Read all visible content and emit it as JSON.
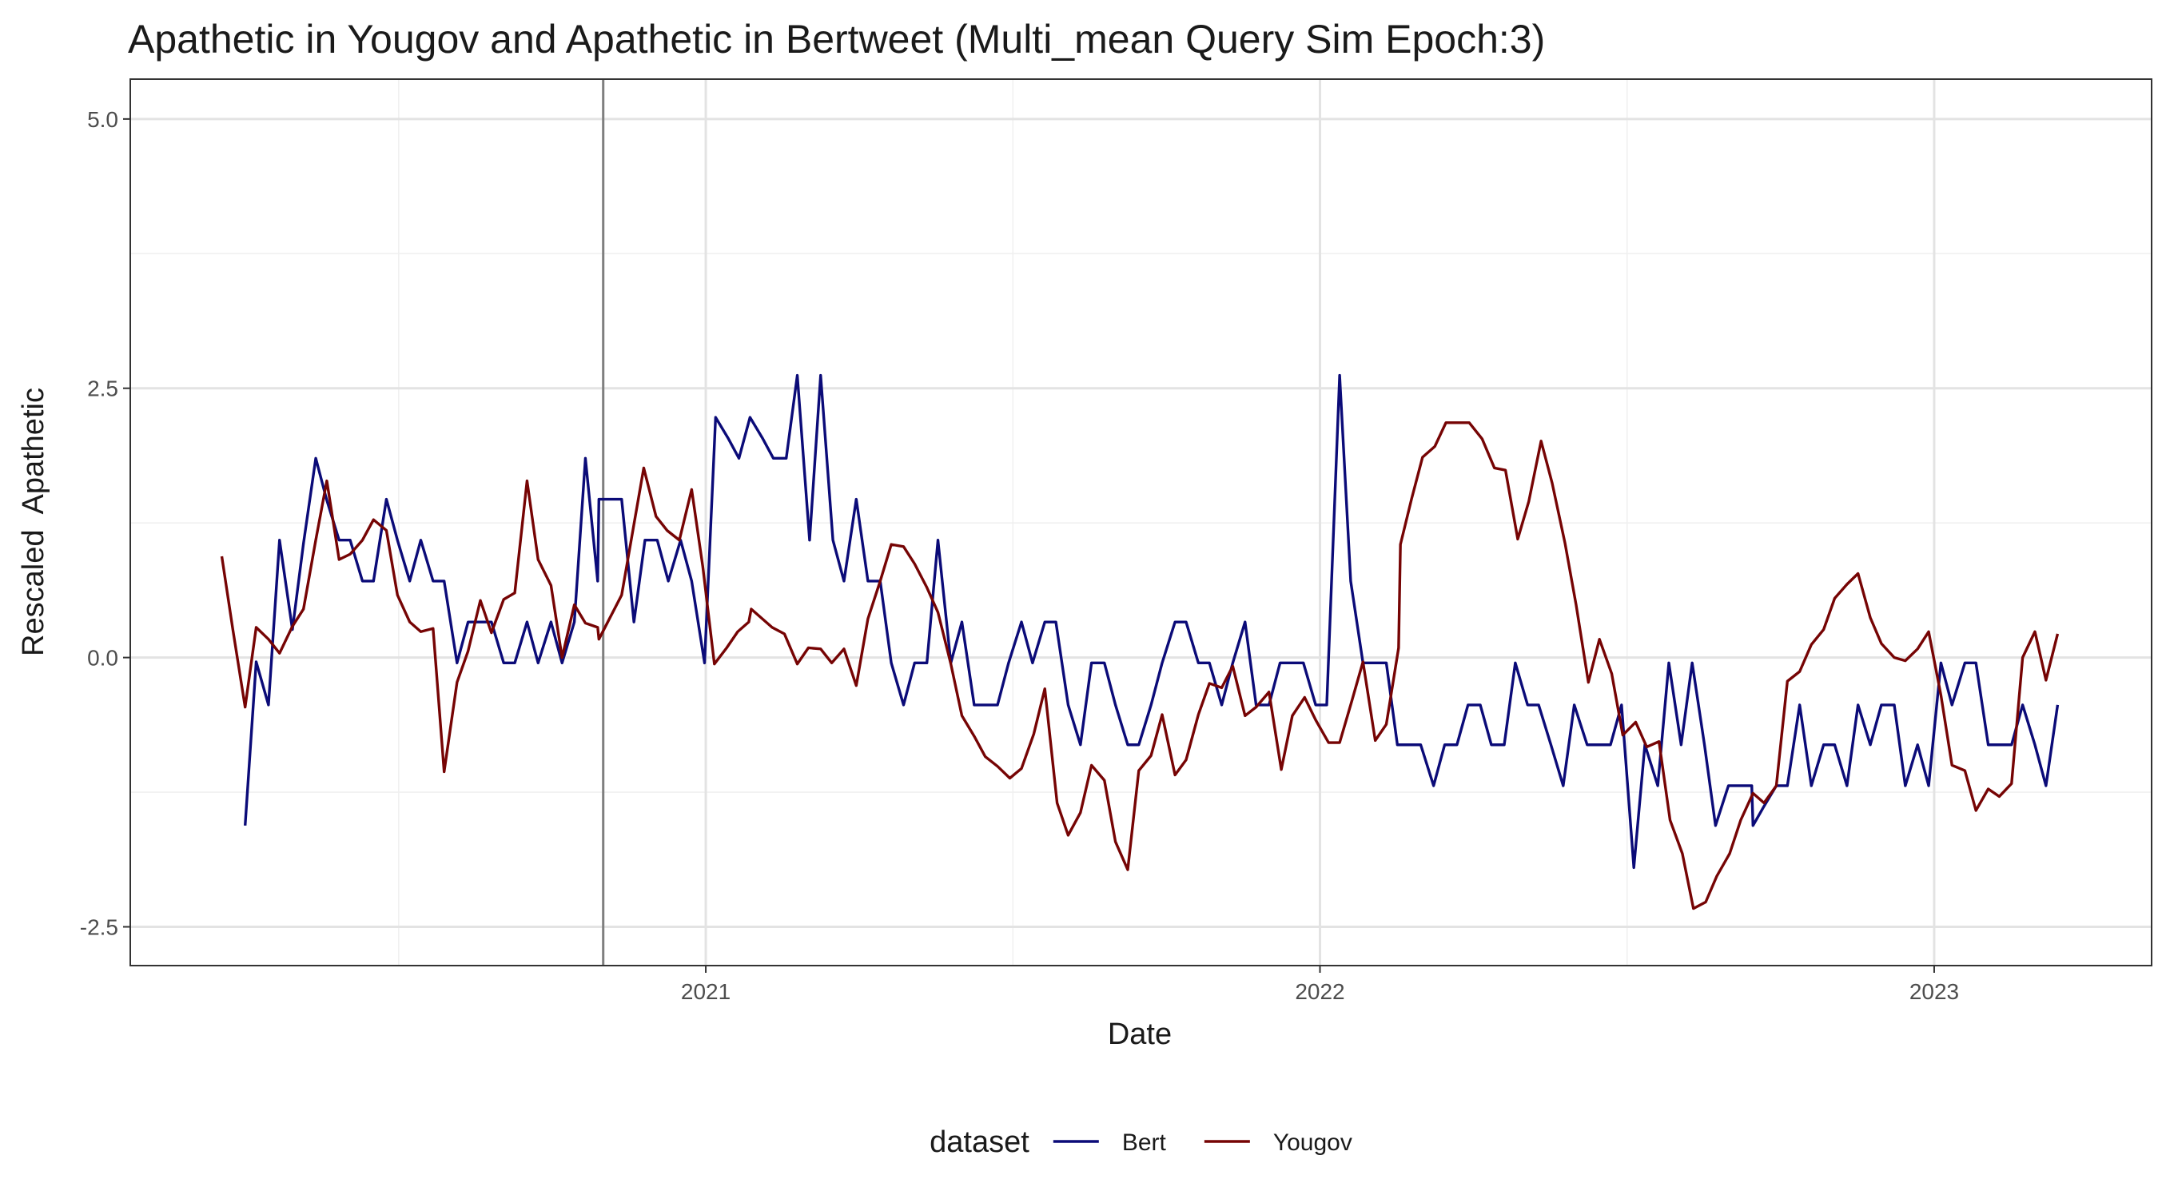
{
  "chart_data": {
    "type": "line",
    "title": "Apathetic in Yougov and Apathetic in Bertweet (Multi_mean Query Sim Epoch:3)",
    "x_label": "Date",
    "y_label": "Rescaled  Apathetic",
    "legend_title": "dataset",
    "legend": "bottom",
    "grid": true,
    "xlim": [
      2020.063,
      2023.354
    ],
    "xticks": [
      2021,
      2022,
      2023
    ],
    "minor_xticks": [
      2020.5,
      2021.5,
      2022.5
    ],
    "ylim": [
      -2.86,
      5.37
    ],
    "yticks": [
      {
        "value": 5,
        "label": "5.0"
      },
      2.5,
      {
        "value": 0,
        "label": "0.0"
      },
      -2.5
    ],
    "minor_yticks": [
      3.75,
      1.25,
      -1.25
    ],
    "vline": 2020.833,
    "vline_color": "#7f7f7f",
    "series": [
      {
        "name": "Bert",
        "color": "#0b0b78",
        "x": [
          2020.25,
          2020.268,
          2020.288,
          2020.306,
          2020.327,
          2020.345,
          2020.365,
          2020.383,
          2020.403,
          2020.421,
          2020.441,
          2020.459,
          2020.48,
          2020.498,
          2020.518,
          2020.536,
          2020.556,
          2020.574,
          2020.595,
          2020.613,
          2020.633,
          2020.651,
          2020.671,
          2020.689,
          2020.709,
          2020.727,
          2020.748,
          2020.766,
          2020.786,
          2020.804,
          2020.824,
          2020.826,
          2020.863,
          2020.883,
          2020.901,
          2020.921,
          2020.939,
          2020.959,
          2020.977,
          2020.998,
          2021.016,
          2021.036,
          2021.054,
          2021.072,
          2021.092,
          2021.11,
          2021.131,
          2021.149,
          2021.169,
          2021.187,
          2021.207,
          2021.225,
          2021.245,
          2021.264,
          2021.284,
          2021.302,
          2021.322,
          2021.34,
          2021.36,
          2021.378,
          2021.399,
          2021.417,
          2021.437,
          2021.455,
          2021.475,
          2021.493,
          2021.514,
          2021.532,
          2021.552,
          2021.57,
          2021.59,
          2021.61,
          2021.628,
          2021.649,
          2021.667,
          2021.687,
          2021.705,
          2021.725,
          2021.743,
          2021.764,
          2021.782,
          2021.802,
          2021.82,
          2021.84,
          2021.858,
          2021.878,
          2021.896,
          2021.917,
          2021.935,
          2021.955,
          2021.973,
          2021.993,
          2022.011,
          2022.032,
          2022.05,
          2022.07,
          2022.088,
          2022.108,
          2022.126,
          2022.146,
          2022.164,
          2022.185,
          2022.203,
          2022.223,
          2022.241,
          2022.261,
          2022.279,
          2022.3,
          2022.318,
          2022.338,
          2022.356,
          2022.376,
          2022.396,
          2022.414,
          2022.435,
          2022.453,
          2022.473,
          2022.491,
          2022.511,
          2022.529,
          2022.55,
          2022.568,
          2022.588,
          2022.606,
          2022.626,
          2022.644,
          2022.665,
          2022.683,
          2022.703,
          2022.705,
          2022.723,
          2022.743,
          2022.761,
          2022.781,
          2022.8,
          2022.82,
          2022.838,
          2022.858,
          2022.876,
          2022.896,
          2022.914,
          2022.935,
          2022.953,
          2022.973,
          2022.991,
          2023.011,
          2023.029,
          2023.05,
          2023.068,
          2023.088,
          2023.106,
          2023.126,
          2023.144,
          2023.164,
          2023.182,
          2023.201
        ],
        "values": [
          -1.56,
          -0.04,
          -0.44,
          1.09,
          0.26,
          1.06,
          1.85,
          1.46,
          1.09,
          1.09,
          0.71,
          0.71,
          1.47,
          1.09,
          0.71,
          1.09,
          0.71,
          0.71,
          -0.05,
          0.33,
          0.33,
          0.33,
          -0.05,
          -0.05,
          0.33,
          -0.05,
          0.33,
          -0.05,
          0.33,
          1.85,
          0.71,
          1.47,
          1.47,
          0.33,
          1.09,
          1.09,
          0.71,
          1.09,
          0.71,
          -0.05,
          2.23,
          2.04,
          1.85,
          2.23,
          2.04,
          1.85,
          1.85,
          2.62,
          1.09,
          2.62,
          1.09,
          0.71,
          1.47,
          0.71,
          0.71,
          -0.05,
          -0.44,
          -0.05,
          -0.05,
          1.09,
          -0.05,
          0.33,
          -0.44,
          -0.44,
          -0.44,
          -0.05,
          0.33,
          -0.05,
          0.33,
          0.33,
          -0.44,
          -0.81,
          -0.05,
          -0.05,
          -0.44,
          -0.81,
          -0.81,
          -0.44,
          -0.05,
          0.33,
          0.33,
          -0.05,
          -0.05,
          -0.44,
          -0.05,
          0.33,
          -0.44,
          -0.44,
          -0.05,
          -0.05,
          -0.05,
          -0.44,
          -0.44,
          2.62,
          0.71,
          -0.05,
          -0.05,
          -0.05,
          -0.81,
          -0.81,
          -0.81,
          -1.19,
          -0.81,
          -0.81,
          -0.44,
          -0.44,
          -0.81,
          -0.81,
          -0.05,
          -0.44,
          -0.44,
          -0.81,
          -1.19,
          -0.44,
          -0.81,
          -0.81,
          -0.81,
          -0.44,
          -1.95,
          -0.81,
          -1.19,
          -0.05,
          -0.81,
          -0.05,
          -0.81,
          -1.56,
          -1.19,
          -1.19,
          -1.19,
          -1.56,
          -1.38,
          -1.19,
          -1.19,
          -0.44,
          -1.19,
          -0.81,
          -0.81,
          -1.19,
          -0.44,
          -0.81,
          -0.44,
          -0.44,
          -1.19,
          -0.81,
          -1.19,
          -0.05,
          -0.44,
          -0.05,
          -0.05,
          -0.81,
          -0.81,
          -0.81,
          -0.44,
          -0.81,
          -1.19,
          -0.44
        ]
      },
      {
        "name": "Yougov",
        "color": "#760404",
        "x": [
          2020.212,
          2020.23,
          2020.25,
          2020.268,
          2020.288,
          2020.306,
          2020.327,
          2020.345,
          2020.365,
          2020.383,
          2020.403,
          2020.421,
          2020.441,
          2020.459,
          2020.48,
          2020.498,
          2020.518,
          2020.536,
          2020.556,
          2020.574,
          2020.595,
          2020.613,
          2020.633,
          2020.651,
          2020.671,
          2020.689,
          2020.709,
          2020.727,
          2020.748,
          2020.766,
          2020.786,
          2020.804,
          2020.824,
          2020.826,
          2020.863,
          2020.899,
          2020.919,
          2020.937,
          2020.957,
          2020.977,
          2020.995,
          2021.014,
          2021.034,
          2021.052,
          2021.07,
          2021.074,
          2021.09,
          2021.108,
          2021.128,
          2021.149,
          2021.167,
          2021.187,
          2021.205,
          2021.225,
          2021.245,
          2021.264,
          2021.284,
          2021.302,
          2021.322,
          2021.34,
          2021.36,
          2021.378,
          2021.399,
          2021.417,
          2021.437,
          2021.455,
          2021.475,
          2021.495,
          2021.514,
          2021.534,
          2021.552,
          2021.572,
          2021.59,
          2021.61,
          2021.628,
          2021.649,
          2021.667,
          2021.687,
          2021.705,
          2021.725,
          2021.743,
          2021.764,
          2021.782,
          2021.802,
          2021.82,
          2021.84,
          2021.858,
          2021.878,
          2021.896,
          2021.917,
          2021.937,
          2021.955,
          2021.975,
          2021.993,
          2022.014,
          2022.032,
          2022.052,
          2022.07,
          2022.09,
          2022.108,
          2022.128,
          2022.131,
          2022.149,
          2022.167,
          2022.187,
          2022.205,
          2022.225,
          2022.243,
          2022.264,
          2022.284,
          2022.302,
          2022.322,
          2022.34,
          2022.36,
          2022.378,
          2022.399,
          2022.417,
          2022.437,
          2022.455,
          2022.475,
          2022.493,
          2022.514,
          2022.532,
          2022.552,
          2022.57,
          2022.59,
          2022.608,
          2022.628,
          2022.646,
          2022.667,
          2022.685,
          2022.705,
          2022.723,
          2022.743,
          2022.761,
          2022.781,
          2022.8,
          2022.82,
          2022.838,
          2022.858,
          2022.876,
          2022.896,
          2022.914,
          2022.935,
          2022.953,
          2022.973,
          2022.991,
          2023.011,
          2023.029,
          2023.05,
          2023.068,
          2023.088,
          2023.106,
          2023.126,
          2023.144,
          2023.164,
          2023.182,
          2023.201
        ],
        "values": [
          0.94,
          0.26,
          -0.46,
          0.28,
          0.17,
          0.04,
          0.29,
          0.45,
          1.09,
          1.64,
          0.91,
          0.96,
          1.09,
          1.28,
          1.18,
          0.58,
          0.33,
          0.24,
          0.27,
          -1.06,
          -0.23,
          0.06,
          0.53,
          0.23,
          0.54,
          0.6,
          1.64,
          0.91,
          0.67,
          0.0,
          0.49,
          0.32,
          0.28,
          0.17,
          0.58,
          1.76,
          1.31,
          1.18,
          1.09,
          1.56,
          0.85,
          -0.06,
          0.09,
          0.24,
          0.33,
          0.45,
          0.37,
          0.28,
          0.22,
          -0.06,
          0.09,
          0.08,
          -0.05,
          0.08,
          -0.26,
          0.36,
          0.71,
          1.05,
          1.03,
          0.87,
          0.65,
          0.42,
          -0.06,
          -0.54,
          -0.73,
          -0.92,
          -1.01,
          -1.12,
          -1.03,
          -0.71,
          -0.29,
          -1.35,
          -1.65,
          -1.44,
          -1.0,
          -1.14,
          -1.71,
          -1.97,
          -1.05,
          -0.91,
          -0.53,
          -1.09,
          -0.95,
          -0.53,
          -0.24,
          -0.28,
          -0.08,
          -0.54,
          -0.46,
          -0.32,
          -1.04,
          -0.54,
          -0.37,
          -0.58,
          -0.79,
          -0.79,
          -0.4,
          -0.04,
          -0.77,
          -0.62,
          0.09,
          1.05,
          1.47,
          1.86,
          1.96,
          2.18,
          2.18,
          2.18,
          2.03,
          1.76,
          1.74,
          1.1,
          1.45,
          2.01,
          1.62,
          1.06,
          0.49,
          -0.23,
          0.17,
          -0.15,
          -0.72,
          -0.6,
          -0.83,
          -0.78,
          -1.51,
          -1.82,
          -2.33,
          -2.27,
          -2.03,
          -1.82,
          -1.51,
          -1.26,
          -1.35,
          -1.19,
          -0.22,
          -0.13,
          0.12,
          0.26,
          0.55,
          0.68,
          0.78,
          0.37,
          0.13,
          0.0,
          -0.03,
          0.08,
          0.24,
          -0.35,
          -1.0,
          -1.05,
          -1.42,
          -1.22,
          -1.29,
          -1.17,
          0.0,
          0.24,
          -0.21,
          0.22
        ]
      }
    ]
  }
}
